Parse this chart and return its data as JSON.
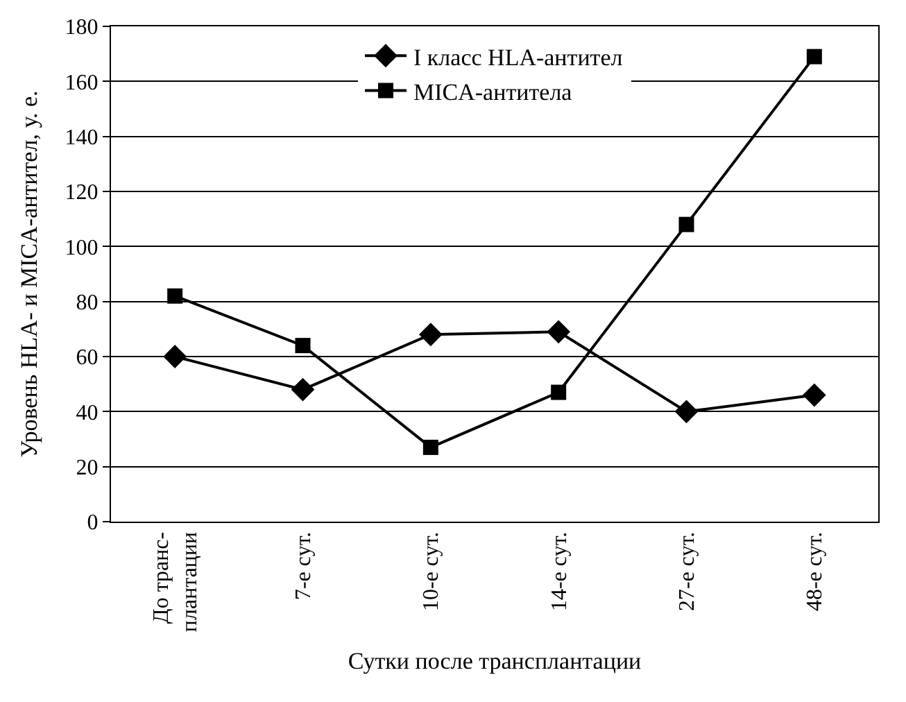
{
  "chart_data": {
    "type": "line",
    "xlabel": "Сутки после трансплантации",
    "ylabel": "Уровень HLA- и MICA-антител, у. е.",
    "categories": [
      "До транс-\nплантации",
      "7-е сут.",
      "10-е сут.",
      "14-е сут.",
      "27-е сут.",
      "48-е сут."
    ],
    "series": [
      {
        "name": "I класс HLA-антител",
        "color": "#000000",
        "marker": "diamond",
        "values": [
          60,
          48,
          68,
          69,
          40,
          46
        ]
      },
      {
        "name": "MICA-антитела",
        "color": "#000000",
        "marker": "square",
        "values": [
          82,
          64,
          27,
          47,
          108,
          169
        ]
      }
    ],
    "ylim": [
      0,
      180
    ],
    "yticks": [
      0,
      20,
      40,
      60,
      80,
      100,
      120,
      140,
      160,
      180
    ],
    "grid": "y",
    "legend": "top",
    "line_style": "solid"
  }
}
